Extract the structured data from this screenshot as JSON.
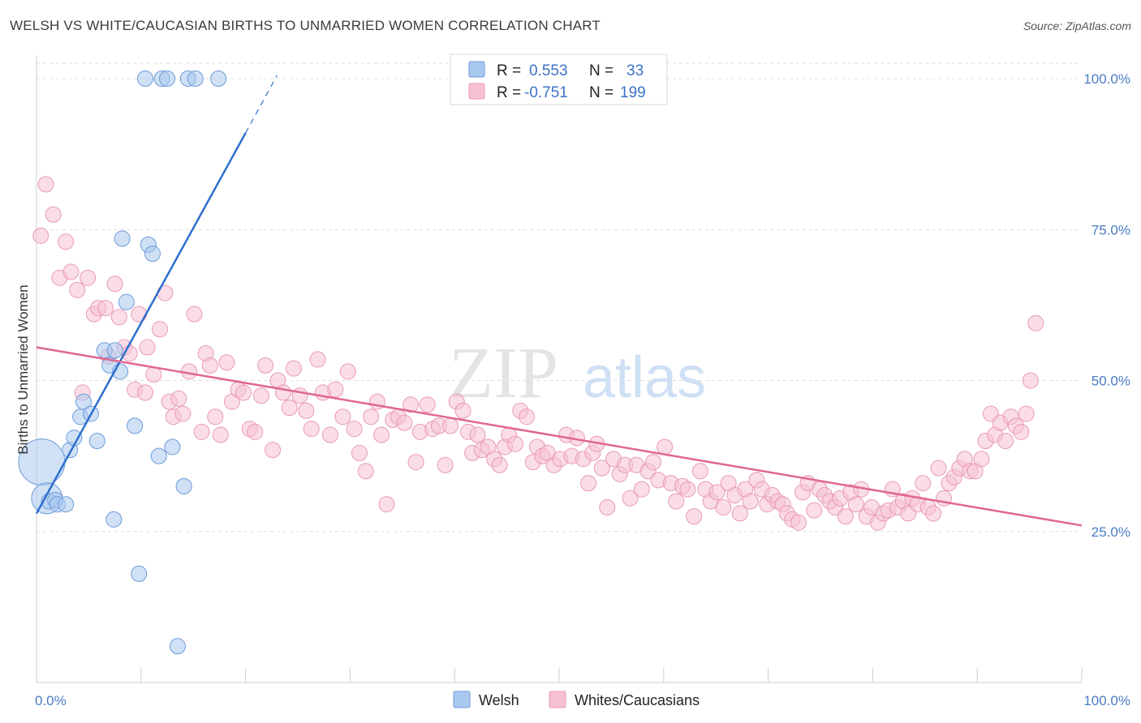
{
  "title": "WELSH VS WHITE/CAUCASIAN BIRTHS TO UNMARRIED WOMEN CORRELATION CHART",
  "source": "Source: ZipAtlas.com",
  "colors": {
    "welsh_fill": "#a9c8ef",
    "welsh_stroke": "#6d9bd8",
    "welsh_line": "#2d6fcd",
    "white_fill": "#f6c1d3",
    "white_stroke": "#e99ab6",
    "white_line": "#e0678f",
    "grid": "#dcdcdc",
    "tick_label": "#4a7cc4"
  },
  "legend": {
    "welsh": {
      "r_label": "R =",
      "r_value": "0.553",
      "n_label": "N =",
      "n_value": "33"
    },
    "white": {
      "r_label": "R =",
      "r_value": "-0.751",
      "n_label": "N =",
      "n_value": "199"
    }
  },
  "watermark": {
    "zip": "ZIP",
    "atlas": "atlas"
  },
  "chart_data": {
    "type": "scatter",
    "title": "WELSH VS WHITE/CAUCASIAN BIRTHS TO UNMARRIED WOMEN CORRELATION CHART",
    "xlabel": "",
    "ylabel": "Births to Unmarried Women",
    "xlim": [
      0,
      100
    ],
    "ylim": [
      0,
      102
    ],
    "x_tick_labels": [
      "0.0%",
      "100.0%"
    ],
    "y_ticks": [
      25,
      50,
      75,
      100
    ],
    "y_tick_labels": [
      "25.0%",
      "50.0%",
      "75.0%",
      "100.0%"
    ],
    "grid": true,
    "legend_position": "top-center",
    "series": [
      {
        "name": "Welsh",
        "color": "#a9c8ef",
        "points": [
          [
            0.5,
            36.5,
            3
          ],
          [
            1.0,
            30.5,
            2
          ],
          [
            1.2,
            30.0,
            1
          ],
          [
            1.8,
            30.2,
            1
          ],
          [
            2.0,
            29.5,
            1
          ],
          [
            2.8,
            29.5,
            1
          ],
          [
            3.2,
            38.5,
            1
          ],
          [
            3.6,
            40.5,
            1
          ],
          [
            4.2,
            44.0,
            1
          ],
          [
            4.5,
            46.5,
            1
          ],
          [
            5.2,
            44.5,
            1
          ],
          [
            5.8,
            40.0,
            1
          ],
          [
            7.0,
            52.5,
            1
          ],
          [
            6.5,
            55.0,
            1
          ],
          [
            7.5,
            55.0,
            1
          ],
          [
            8.0,
            51.5,
            1
          ],
          [
            8.2,
            73.5,
            1
          ],
          [
            8.6,
            63.0,
            1
          ],
          [
            9.4,
            42.5,
            1
          ],
          [
            7.4,
            27.0,
            1
          ],
          [
            9.8,
            18.0,
            1
          ],
          [
            10.7,
            72.5,
            1
          ],
          [
            11.1,
            71.0,
            1
          ],
          [
            11.7,
            37.5,
            1
          ],
          [
            13.0,
            39.0,
            1
          ],
          [
            14.1,
            32.5,
            1
          ],
          [
            13.5,
            6.0,
            1
          ],
          [
            10.4,
            100,
            1
          ],
          [
            12.0,
            100,
            1
          ],
          [
            12.5,
            100,
            1
          ],
          [
            14.5,
            100,
            1
          ],
          [
            15.2,
            100,
            1
          ],
          [
            17.4,
            100,
            1
          ]
        ]
      },
      {
        "name": "Whites/Caucasians",
        "color": "#f6c1d3",
        "points": [
          [
            0.4,
            74
          ],
          [
            0.9,
            82.5
          ],
          [
            1.6,
            77.5
          ],
          [
            2.2,
            67
          ],
          [
            2.8,
            73
          ],
          [
            3.3,
            68
          ],
          [
            3.9,
            65
          ],
          [
            4.4,
            48
          ],
          [
            4.9,
            67
          ],
          [
            5.5,
            61
          ],
          [
            5.9,
            62
          ],
          [
            6.6,
            62
          ],
          [
            6.9,
            54
          ],
          [
            7.5,
            66
          ],
          [
            7.9,
            60.5
          ],
          [
            8.4,
            55.5
          ],
          [
            8.9,
            54.5
          ],
          [
            9.4,
            48.5
          ],
          [
            9.8,
            61
          ],
          [
            10.4,
            48
          ],
          [
            10.6,
            55.5
          ],
          [
            11.2,
            51
          ],
          [
            11.8,
            58.5
          ],
          [
            12.3,
            64.5
          ],
          [
            12.7,
            46.5
          ],
          [
            13.1,
            44
          ],
          [
            13.6,
            47
          ],
          [
            14.0,
            44.5
          ],
          [
            14.6,
            51.5
          ],
          [
            15.1,
            61
          ],
          [
            15.8,
            41.5
          ],
          [
            16.2,
            54.5
          ],
          [
            16.6,
            52.5
          ],
          [
            17.1,
            44
          ],
          [
            17.6,
            41
          ],
          [
            18.2,
            53
          ],
          [
            18.7,
            46.5
          ],
          [
            19.3,
            48.5
          ],
          [
            19.8,
            48
          ],
          [
            20.4,
            42
          ],
          [
            20.9,
            41.5
          ],
          [
            21.5,
            47.5
          ],
          [
            21.9,
            52.5
          ],
          [
            22.6,
            38.5
          ],
          [
            23.1,
            50
          ],
          [
            23.6,
            48
          ],
          [
            24.2,
            45.5
          ],
          [
            24.6,
            52
          ],
          [
            25.2,
            47.5
          ],
          [
            25.8,
            45
          ],
          [
            26.3,
            42
          ],
          [
            26.9,
            53.5
          ],
          [
            27.4,
            48
          ],
          [
            28.1,
            41
          ],
          [
            28.6,
            48.5
          ],
          [
            29.3,
            44
          ],
          [
            29.8,
            51.5
          ],
          [
            30.4,
            42
          ],
          [
            30.9,
            38
          ],
          [
            31.5,
            35
          ],
          [
            32.0,
            44
          ],
          [
            32.6,
            46.5
          ],
          [
            33.0,
            41
          ],
          [
            33.5,
            29.5
          ],
          [
            34.1,
            43.5
          ],
          [
            34.6,
            44
          ],
          [
            35.2,
            43
          ],
          [
            35.8,
            46
          ],
          [
            36.3,
            36.5
          ],
          [
            36.7,
            41.5
          ],
          [
            37.4,
            46
          ],
          [
            37.9,
            42
          ],
          [
            38.5,
            42.5
          ],
          [
            39.1,
            36
          ],
          [
            39.6,
            42.5
          ],
          [
            40.2,
            46.5
          ],
          [
            40.8,
            45
          ],
          [
            41.3,
            41.5
          ],
          [
            41.7,
            38
          ],
          [
            42.2,
            41
          ],
          [
            42.6,
            38.5
          ],
          [
            43.2,
            39
          ],
          [
            43.8,
            37
          ],
          [
            44.3,
            36
          ],
          [
            44.8,
            39
          ],
          [
            45.2,
            41
          ],
          [
            45.8,
            39.5
          ],
          [
            46.3,
            45
          ],
          [
            46.9,
            44
          ],
          [
            47.5,
            36.5
          ],
          [
            47.9,
            39
          ],
          [
            48.4,
            37.5
          ],
          [
            48.9,
            38
          ],
          [
            49.5,
            36
          ],
          [
            50.1,
            37
          ],
          [
            50.7,
            41
          ],
          [
            51.2,
            37.5
          ],
          [
            51.7,
            40.5
          ],
          [
            52.3,
            37
          ],
          [
            52.8,
            33
          ],
          [
            53.2,
            38
          ],
          [
            53.6,
            39.5
          ],
          [
            54.1,
            35.5
          ],
          [
            54.6,
            29
          ],
          [
            55.2,
            37
          ],
          [
            55.8,
            34.5
          ],
          [
            56.3,
            36
          ],
          [
            56.8,
            30.5
          ],
          [
            57.4,
            36
          ],
          [
            57.9,
            32
          ],
          [
            58.5,
            35
          ],
          [
            59.0,
            36.5
          ],
          [
            59.5,
            33.5
          ],
          [
            60.1,
            39
          ],
          [
            60.7,
            33
          ],
          [
            61.2,
            30
          ],
          [
            61.8,
            32.5
          ],
          [
            62.3,
            32
          ],
          [
            62.9,
            27.5
          ],
          [
            63.5,
            35
          ],
          [
            64.0,
            32
          ],
          [
            64.5,
            30
          ],
          [
            65.1,
            31.5
          ],
          [
            65.7,
            29
          ],
          [
            66.2,
            33
          ],
          [
            66.8,
            31
          ],
          [
            67.3,
            28
          ],
          [
            67.8,
            32
          ],
          [
            68.3,
            30
          ],
          [
            68.9,
            33.5
          ],
          [
            69.4,
            32
          ],
          [
            69.9,
            29.5
          ],
          [
            70.4,
            31
          ],
          [
            70.9,
            30
          ],
          [
            71.4,
            29.5
          ],
          [
            71.8,
            28
          ],
          [
            72.3,
            27
          ],
          [
            72.9,
            26.5
          ],
          [
            73.3,
            31.5
          ],
          [
            73.8,
            33
          ],
          [
            74.4,
            28.5
          ],
          [
            74.9,
            32
          ],
          [
            75.4,
            31
          ],
          [
            75.9,
            30
          ],
          [
            76.4,
            29
          ],
          [
            76.9,
            30.5
          ],
          [
            77.4,
            27.5
          ],
          [
            77.9,
            31.5
          ],
          [
            78.4,
            29.5
          ],
          [
            78.9,
            32
          ],
          [
            79.4,
            27.5
          ],
          [
            79.9,
            29
          ],
          [
            80.5,
            26.5
          ],
          [
            81.0,
            28
          ],
          [
            81.5,
            28.5
          ],
          [
            81.9,
            32
          ],
          [
            82.4,
            29
          ],
          [
            82.9,
            30
          ],
          [
            83.4,
            28
          ],
          [
            83.8,
            30.5
          ],
          [
            84.3,
            29.5
          ],
          [
            84.8,
            33
          ],
          [
            85.3,
            29
          ],
          [
            85.8,
            28
          ],
          [
            86.3,
            35.5
          ],
          [
            86.8,
            30.5
          ],
          [
            87.3,
            33
          ],
          [
            87.8,
            34
          ],
          [
            88.3,
            35.5
          ],
          [
            88.8,
            37
          ],
          [
            89.3,
            35
          ],
          [
            89.8,
            35
          ],
          [
            90.4,
            37
          ],
          [
            90.8,
            40
          ],
          [
            91.3,
            44.5
          ],
          [
            91.7,
            41
          ],
          [
            92.2,
            43
          ],
          [
            92.7,
            40
          ],
          [
            93.2,
            44
          ],
          [
            93.7,
            42.5
          ],
          [
            94.2,
            41.5
          ],
          [
            94.7,
            44.5
          ],
          [
            95.1,
            50
          ],
          [
            95.6,
            59.5
          ]
        ]
      }
    ],
    "trendlines": [
      {
        "series": "Welsh",
        "from": [
          0,
          28.0
        ],
        "to": [
          20,
          91.0
        ],
        "dashed_to": [
          23,
          100.5
        ]
      },
      {
        "series": "Whites/Caucasians",
        "from": [
          0,
          55.5
        ],
        "to": [
          100,
          26.0
        ]
      }
    ]
  }
}
